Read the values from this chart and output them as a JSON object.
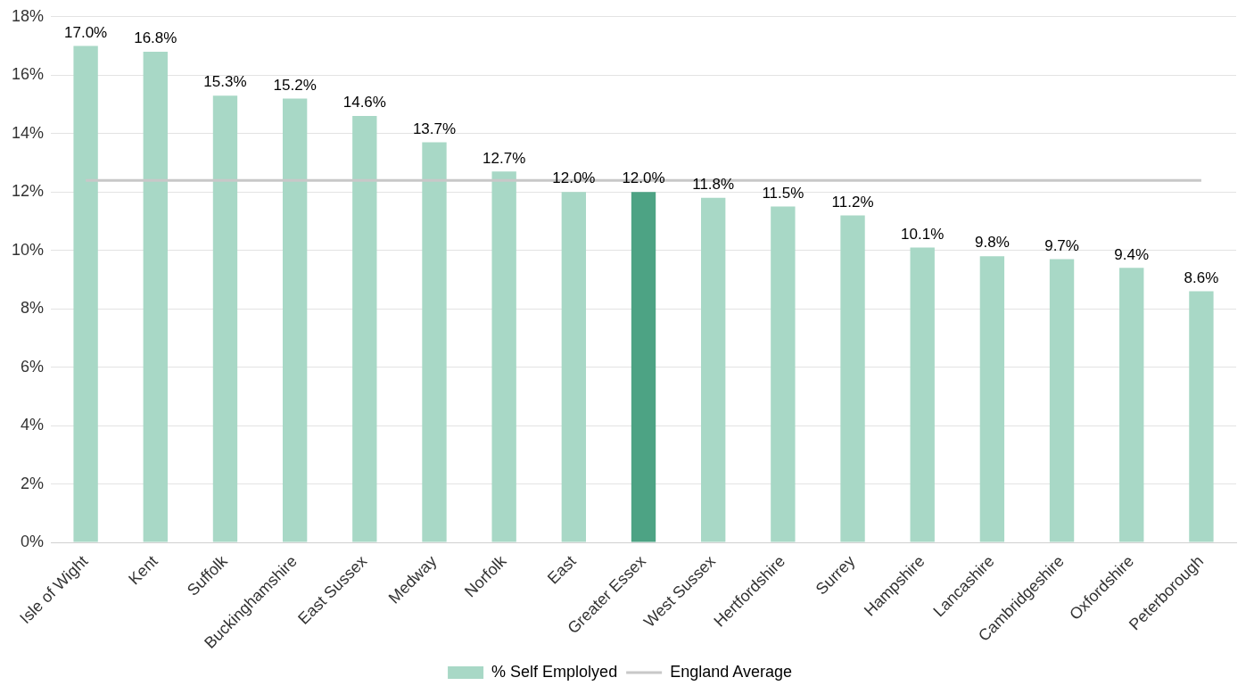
{
  "chart_data": {
    "type": "bar",
    "categories": [
      "Isle of Wight",
      "Kent",
      "Suffolk",
      "Buckinghamshire",
      "East Sussex",
      "Medway",
      "Norfolk",
      "East",
      "Greater Essex",
      "West Sussex",
      "Hertfordshire",
      "Surrey",
      "Hampshire",
      "Lancashire",
      "Cambridgeshire",
      "Oxfordshire",
      "Peterborough"
    ],
    "series": [
      {
        "name": "% Self Emplolyed",
        "color": "#a8d8c6",
        "colors": [
          "#a8d8c6",
          "#a8d8c6",
          "#a8d8c6",
          "#a8d8c6",
          "#a8d8c6",
          "#a8d8c6",
          "#a8d8c6",
          "#a8d8c6",
          "#4da384",
          "#a8d8c6",
          "#a8d8c6",
          "#a8d8c6",
          "#a8d8c6",
          "#a8d8c6",
          "#a8d8c6",
          "#a8d8c6",
          "#a8d8c6"
        ],
        "values": [
          17.0,
          16.8,
          15.3,
          15.2,
          14.6,
          13.7,
          12.7,
          12.0,
          12.0,
          11.8,
          11.5,
          11.2,
          10.1,
          9.8,
          9.7,
          9.4,
          8.6
        ],
        "value_labels": [
          "17.0%",
          "16.8%",
          "15.3%",
          "15.2%",
          "14.6%",
          "13.7%",
          "12.7%",
          "12.0%",
          "12.0%",
          "11.8%",
          "11.5%",
          "11.2%",
          "10.1%",
          "9.8%",
          "9.7%",
          "9.4%",
          "8.6%"
        ]
      },
      {
        "name": "England Average",
        "type": "line",
        "color": "#c8c8c8",
        "values": [
          12.4,
          12.4,
          12.4,
          12.4,
          12.4,
          12.4,
          12.4,
          12.4,
          12.4,
          12.4,
          12.4,
          12.4,
          12.4,
          12.4,
          12.4,
          12.4,
          12.4
        ]
      }
    ],
    "ylim": [
      0,
      18
    ],
    "yticks": [
      {
        "value": 0,
        "label": "0%"
      },
      {
        "value": 2,
        "label": "2%"
      },
      {
        "value": 4,
        "label": "4%"
      },
      {
        "value": 6,
        "label": "6%"
      },
      {
        "value": 8,
        "label": "8%"
      },
      {
        "value": 10,
        "label": "10%"
      },
      {
        "value": 12,
        "label": "12%"
      },
      {
        "value": 14,
        "label": "14%"
      },
      {
        "value": 16,
        "label": "16%"
      },
      {
        "value": 18,
        "label": "18%"
      }
    ],
    "grid": "y",
    "legend": "bottom",
    "marker": "none"
  }
}
